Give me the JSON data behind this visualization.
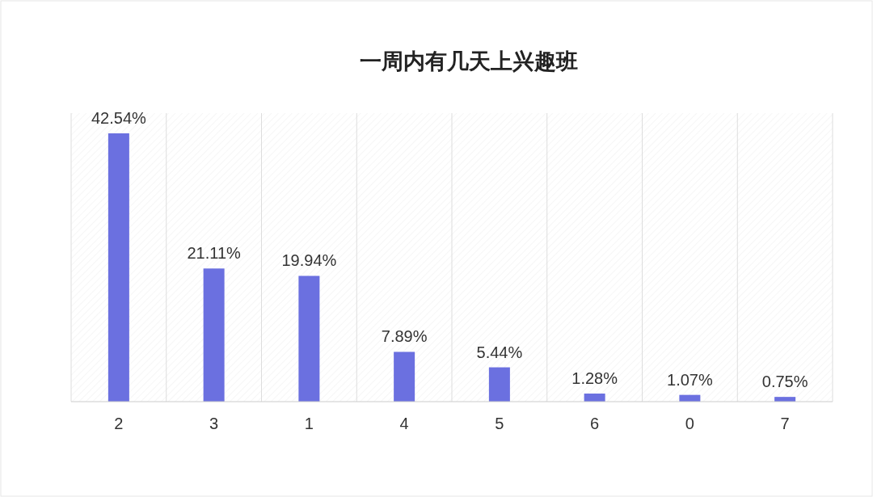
{
  "chart_data": {
    "type": "bar",
    "title": "一周内有几天上兴趣班",
    "categories": [
      "2",
      "3",
      "1",
      "4",
      "5",
      "6",
      "0",
      "7"
    ],
    "values": [
      42.54,
      21.11,
      19.94,
      7.89,
      5.44,
      1.28,
      1.07,
      0.75
    ],
    "value_labels": [
      "42.54%",
      "21.11%",
      "19.94%",
      "7.89%",
      "5.44%",
      "1.28%",
      "1.07%",
      "0.75%"
    ],
    "color": "#6b70e0",
    "grid": "x"
  }
}
